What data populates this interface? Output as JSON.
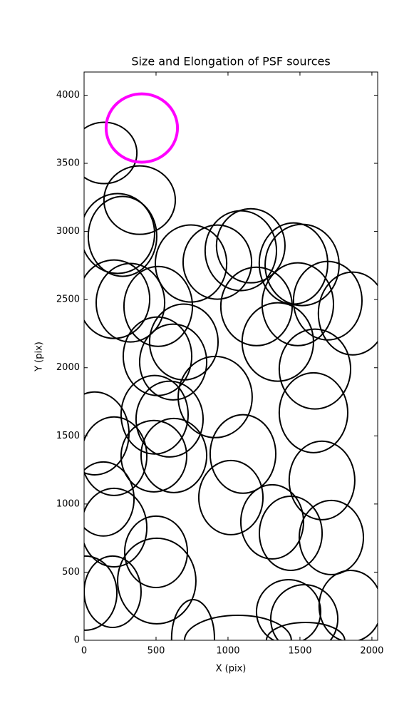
{
  "chart_data": {
    "type": "ellipse",
    "title": "Size and Elongation of PSF sources",
    "xlabel": "X (pix)",
    "ylabel": "Y (pix)",
    "xlim": [
      0,
      2040
    ],
    "ylim": [
      0,
      4170
    ],
    "xticks": [
      0,
      500,
      1000,
      1500,
      2000
    ],
    "yticks": [
      0,
      500,
      1000,
      1500,
      2000,
      2500,
      3000,
      3500,
      4000
    ],
    "series": [
      {
        "color": "#000000",
        "linewidth": 2,
        "x": [
          139,
          386,
          267,
          233,
          208,
          322,
          515,
          693,
          510,
          619,
          490,
          594,
          911,
          74,
          208,
          485,
          624,
          134,
          208,
          500,
          505,
          10,
          198,
          757,
          1069,
          1539,
          1104,
          1020,
          1307,
          1436,
          1718,
          1653,
          1594,
          1604,
          1346,
          1198,
          1485,
          1693,
          1866,
          1455,
          1515,
          1158,
          1089,
          743,
          1530,
          1421,
          1851,
          926
        ],
        "y": [
          3576,
          3230,
          2964,
          2985,
          2503,
          2477,
          2450,
          2189,
          2084,
          2042,
          1655,
          1623,
          1785,
          1518,
          1351,
          1351,
          1356,
          1037,
          827,
          649,
          435,
          346,
          356,
          10,
          0,
          0,
          1367,
          1047,
          869,
          785,
          754,
          1173,
          1670,
          1990,
          2189,
          2450,
          2466,
          2492,
          2398,
          2765,
          2754,
          2895,
          2859,
          2765,
          157,
          209,
          251,
          2775
        ],
        "rx": [
          228,
          248,
          238,
          257,
          248,
          238,
          238,
          238,
          238,
          233,
          233,
          233,
          257,
          238,
          228,
          228,
          228,
          213,
          228,
          218,
          272,
          218,
          198,
          149,
          371,
          272,
          228,
          223,
          218,
          218,
          223,
          228,
          238,
          248,
          248,
          248,
          248,
          238,
          238,
          238,
          257,
          238,
          248,
          248,
          233,
          223,
          218,
          238
        ],
        "ry": [
          225,
          251,
          293,
          293,
          288,
          288,
          293,
          278,
          288,
          278,
          288,
          278,
          298,
          304,
          288,
          262,
          272,
          272,
          288,
          262,
          314,
          272,
          262,
          288,
          183,
          131,
          288,
          272,
          272,
          272,
          272,
          288,
          293,
          293,
          288,
          288,
          304,
          288,
          304,
          298,
          298,
          272,
          293,
          283,
          251,
          236,
          262,
          272
        ]
      },
      {
        "color": "#ff00ff",
        "linewidth": 4,
        "x": [
          401
        ],
        "y": [
          3759
        ],
        "rx": [
          248
        ],
        "ry": [
          251
        ]
      }
    ]
  }
}
